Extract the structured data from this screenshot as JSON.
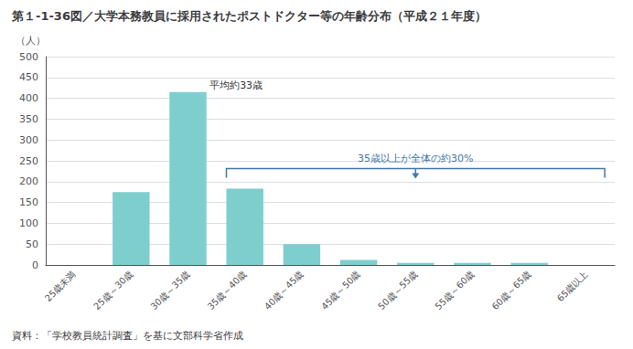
{
  "chart_data": {
    "type": "bar",
    "title": "第１-1-36図／大学本務教員に採用されたポストドクター等の年齢分布（平成２１年度）",
    "ylabel": "（人）",
    "categories": [
      "25歳未満",
      "25歳～30歳",
      "30歳～35歳",
      "35歳～40歳",
      "40歳～45歳",
      "45歳～50歳",
      "50歳～55歳",
      "55歳～60歳",
      "60歳～65歳",
      "65歳以上"
    ],
    "values": [
      0,
      175,
      415,
      183,
      50,
      12,
      5,
      5,
      5,
      0
    ],
    "color": "#7ecece",
    "ylim": [
      0,
      500
    ],
    "yticks": [
      0,
      50,
      100,
      150,
      200,
      250,
      300,
      350,
      400,
      450,
      500
    ],
    "grid": true,
    "annotations": [
      {
        "text": "平均約33歳",
        "category": "30歳～35歳"
      },
      {
        "text": "35歳以上が全体の約30%",
        "from": "35歳～40歳",
        "to": "65歳以上",
        "color": "#4477aa"
      }
    ],
    "footnote": "資料：「学校教員統計調査」を基に文部科学省作成"
  }
}
